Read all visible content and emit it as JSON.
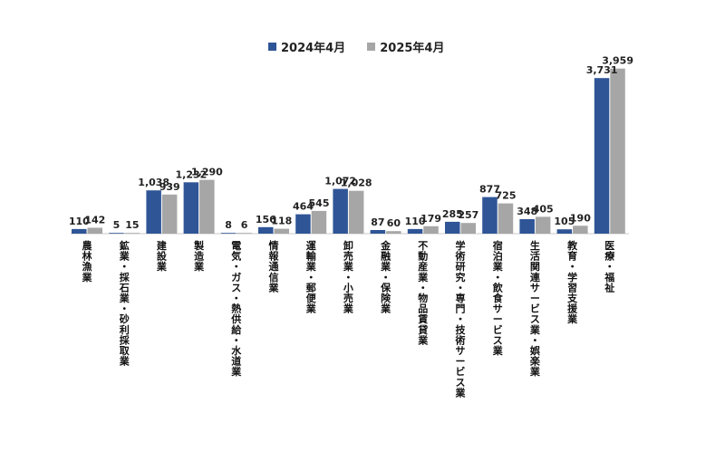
{
  "chart_data": {
    "type": "bar",
    "title": "",
    "xlabel": "",
    "ylabel": "",
    "ylim": [
      0,
      4300
    ],
    "grid": false,
    "legend_position": "top",
    "categories": [
      "農林漁業",
      "鉱業・採石業・砂利採取業",
      "建設業",
      "製造業",
      "電気・ガス・熱供給・水道業",
      "情報通信業",
      "運輸業・郵便業",
      "卸売業・小売業",
      "金融業・保険業",
      "不動産業・物品賃貸業",
      "学術研究・専門・技術サービス業",
      "宿泊業・飲食サービス業",
      "生活関連サービス業・娯楽業",
      "教育・学習支援業",
      "医療・福祉"
    ],
    "series": [
      {
        "name": "2024年4月",
        "color": "#2f5597",
        "values": [
          110,
          5,
          1038,
          1232,
          8,
          156,
          464,
          1072,
          87,
          110,
          285,
          877,
          348,
          105,
          3731
        ],
        "labels": [
          "110",
          "5",
          "1,038",
          "1,232",
          "8",
          "156",
          "464",
          "1,072",
          "87",
          "110",
          "285",
          "877",
          "348",
          "105",
          "3,731"
        ]
      },
      {
        "name": "2025年4月",
        "color": "#a6a6a6",
        "values": [
          142,
          15,
          939,
          1290,
          6,
          118,
          545,
          1028,
          60,
          179,
          257,
          725,
          405,
          190,
          3959
        ],
        "labels": [
          "142",
          "15",
          "939",
          "1,290",
          "6",
          "118",
          "545",
          "1,028",
          "60",
          "179",
          "257",
          "725",
          "405",
          "190",
          "3,959"
        ]
      }
    ]
  }
}
